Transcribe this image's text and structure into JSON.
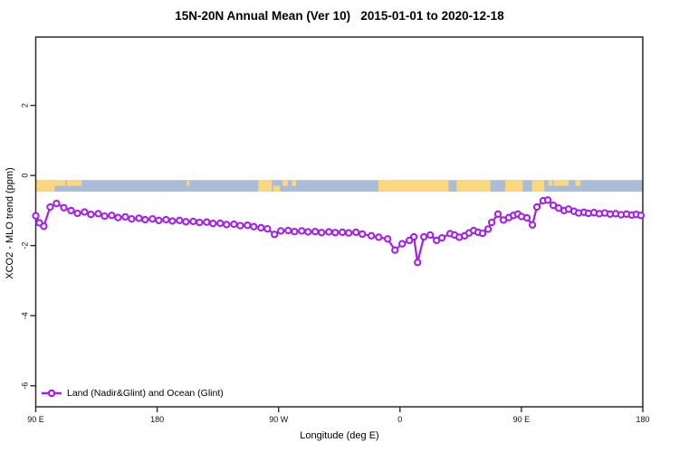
{
  "chart_data": {
    "type": "line",
    "title": "15N-20N Annual Mean (Ver 10)   2015-01-01 to 2020-12-18",
    "xlabel": "Longitude (deg E)",
    "ylabel": "XCO2 - MLO trend (ppm)",
    "xlim": [
      90,
      540
    ],
    "ylim": [
      -6.6,
      3.95
    ],
    "grid": false,
    "legend_position": "bottom-left",
    "x_ticks": [
      {
        "pos": 90,
        "label": "90 E"
      },
      {
        "pos": 180,
        "label": "180"
      },
      {
        "pos": 270,
        "label": "90 W"
      },
      {
        "pos": 360,
        "label": "0"
      },
      {
        "pos": 450,
        "label": "90 E"
      },
      {
        "pos": 540,
        "label": "180"
      }
    ],
    "y_ticks": [
      {
        "pos": 2,
        "label": "2"
      },
      {
        "pos": 0,
        "label": "0"
      },
      {
        "pos": -2,
        "label": "-2"
      },
      {
        "pos": -4,
        "label": "-4"
      },
      {
        "pos": -6,
        "label": "-6"
      }
    ],
    "map_strip": {
      "description": "world coastline band for the 15N-20N latitude zone drawn near y=0",
      "value_top": -0.13,
      "value_bottom": -0.46,
      "ocean_color": "#A9BDD9",
      "land_color": "#FBD77E",
      "land_segments": [
        {
          "from": 90,
          "to": 104,
          "part": "full"
        },
        {
          "from": 104,
          "to": 112,
          "part": "top"
        },
        {
          "from": 113,
          "to": 124,
          "part": "top"
        },
        {
          "from": 202,
          "to": 204,
          "part": "top"
        },
        {
          "from": 255,
          "to": 265,
          "part": "full"
        },
        {
          "from": 266,
          "to": 271,
          "part": "bottom"
        },
        {
          "from": 273,
          "to": 277,
          "part": "top"
        },
        {
          "from": 280,
          "to": 283,
          "part": "top"
        },
        {
          "from": 344,
          "to": 396,
          "part": "full"
        },
        {
          "from": 402,
          "to": 427,
          "part": "full"
        },
        {
          "from": 438,
          "to": 451,
          "part": "full"
        },
        {
          "from": 458,
          "to": 467,
          "part": "full"
        },
        {
          "from": 470,
          "to": 473,
          "part": "top"
        },
        {
          "from": 474,
          "to": 485,
          "part": "top"
        },
        {
          "from": 490,
          "to": 494,
          "part": "top"
        }
      ]
    },
    "series": [
      {
        "name": "Land (Nadir&Glint) and Ocean (Glint)",
        "color": "#A020F0",
        "marker": "open-circle",
        "points": [
          [
            90,
            -1.15
          ],
          [
            92.7,
            -1.35
          ],
          [
            96,
            -1.45
          ],
          [
            100.7,
            -0.9
          ],
          [
            105.4,
            -0.8
          ],
          [
            110.8,
            -0.92
          ],
          [
            116.2,
            -1.0
          ],
          [
            120.9,
            -1.08
          ],
          [
            126.2,
            -1.04
          ],
          [
            130.9,
            -1.11
          ],
          [
            136.3,
            -1.09
          ],
          [
            141,
            -1.16
          ],
          [
            146.3,
            -1.14
          ],
          [
            151,
            -1.2
          ],
          [
            156.4,
            -1.18
          ],
          [
            161.1,
            -1.24
          ],
          [
            166.5,
            -1.22
          ],
          [
            171.1,
            -1.26
          ],
          [
            176.5,
            -1.24
          ],
          [
            181.2,
            -1.28
          ],
          [
            186.6,
            -1.26
          ],
          [
            191.3,
            -1.3
          ],
          [
            196.6,
            -1.28
          ],
          [
            201.3,
            -1.32
          ],
          [
            206.7,
            -1.31
          ],
          [
            211.4,
            -1.34
          ],
          [
            216.7,
            -1.33
          ],
          [
            221.4,
            -1.37
          ],
          [
            226.8,
            -1.36
          ],
          [
            231.5,
            -1.4
          ],
          [
            236.9,
            -1.39
          ],
          [
            241.6,
            -1.43
          ],
          [
            246.9,
            -1.42
          ],
          [
            251.6,
            -1.46
          ],
          [
            257,
            -1.49
          ],
          [
            261.7,
            -1.52
          ],
          [
            267,
            -1.68
          ],
          [
            271.7,
            -1.58
          ],
          [
            277.1,
            -1.57
          ],
          [
            281.8,
            -1.6
          ],
          [
            287.2,
            -1.58
          ],
          [
            291.9,
            -1.61
          ],
          [
            297.2,
            -1.6
          ],
          [
            301.9,
            -1.63
          ],
          [
            307.3,
            -1.61
          ],
          [
            312,
            -1.63
          ],
          [
            317.3,
            -1.62
          ],
          [
            322,
            -1.64
          ],
          [
            327.4,
            -1.62
          ],
          [
            332.1,
            -1.67
          ],
          [
            338.8,
            -1.72
          ],
          [
            344.2,
            -1.76
          ],
          [
            350.9,
            -1.81
          ],
          [
            356.3,
            -2.13
          ],
          [
            361.6,
            -1.95
          ],
          [
            367,
            -1.85
          ],
          [
            370.3,
            -1.75
          ],
          [
            373,
            -2.48
          ],
          [
            377.7,
            -1.75
          ],
          [
            382.4,
            -1.7
          ],
          [
            387.1,
            -1.85
          ],
          [
            391.1,
            -1.78
          ],
          [
            397.2,
            -1.66
          ],
          [
            400.5,
            -1.7
          ],
          [
            403.9,
            -1.76
          ],
          [
            407.9,
            -1.72
          ],
          [
            411.2,
            -1.64
          ],
          [
            414.6,
            -1.57
          ],
          [
            417.9,
            -1.62
          ],
          [
            421.3,
            -1.65
          ],
          [
            425.3,
            -1.53
          ],
          [
            428,
            -1.34
          ],
          [
            432.7,
            -1.1
          ],
          [
            436.7,
            -1.27
          ],
          [
            440.7,
            -1.2
          ],
          [
            444.1,
            -1.14
          ],
          [
            447.4,
            -1.1
          ],
          [
            450.1,
            -1.17
          ],
          [
            454.1,
            -1.21
          ],
          [
            458.2,
            -1.41
          ],
          [
            461.5,
            -0.9
          ],
          [
            466.2,
            -0.72
          ],
          [
            469.6,
            -0.7
          ],
          [
            473.6,
            -0.85
          ],
          [
            477.6,
            -0.93
          ],
          [
            481.6,
            -1.0
          ],
          [
            485,
            -0.96
          ],
          [
            489,
            -1.02
          ],
          [
            492.4,
            -1.07
          ],
          [
            496.4,
            -1.05
          ],
          [
            499.7,
            -1.08
          ],
          [
            503.8,
            -1.06
          ],
          [
            507.8,
            -1.09
          ],
          [
            511.8,
            -1.07
          ],
          [
            515.8,
            -1.1
          ],
          [
            519.9,
            -1.09
          ],
          [
            523.9,
            -1.12
          ],
          [
            527.9,
            -1.1
          ],
          [
            531.9,
            -1.13
          ],
          [
            535.2,
            -1.11
          ],
          [
            538.6,
            -1.14
          ]
        ]
      }
    ]
  }
}
